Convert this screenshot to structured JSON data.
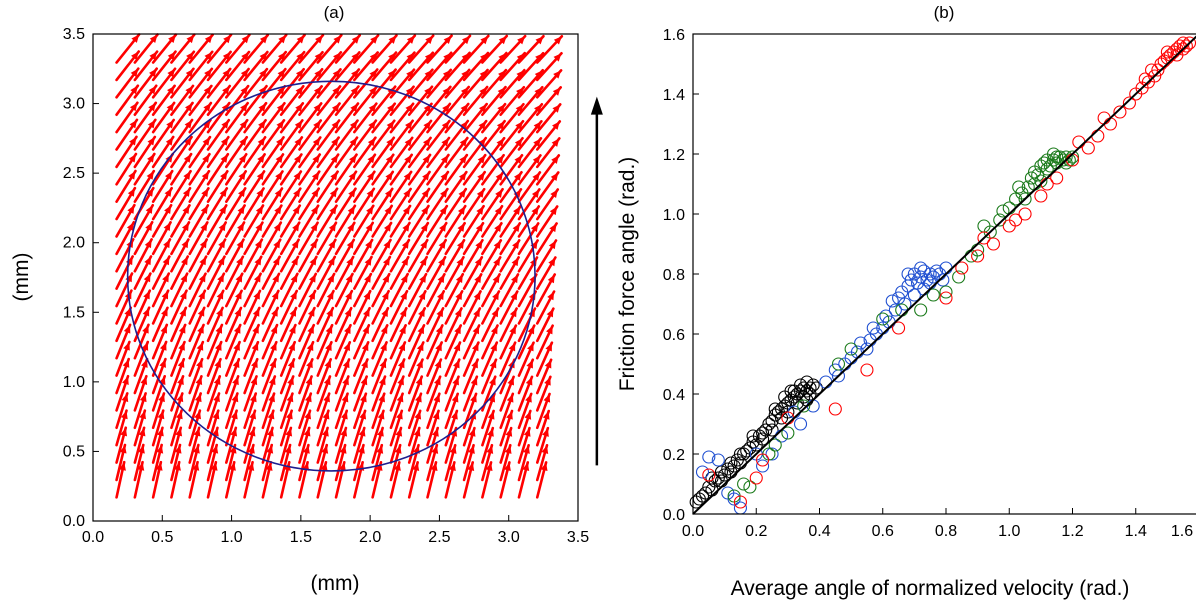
{
  "colors": {
    "field_arrows": "#ff0000",
    "circle": "#1f1f8f",
    "motion_arrow": "#000000",
    "frame": "#000000",
    "identity_line": "#000000"
  },
  "chart_data": [
    {
      "type": "vector-field",
      "panel_label": "(a)",
      "xlabel": "(mm)",
      "ylabel": "(mm)",
      "xlim": [
        0.0,
        3.5
      ],
      "ylim": [
        0.0,
        3.5
      ],
      "xticks": [
        "0.0",
        "0.5",
        "1.0",
        "1.5",
        "2.0",
        "2.5",
        "3.0",
        "3.5"
      ],
      "yticks": [
        "0.0",
        "0.5",
        "1.0",
        "1.5",
        "2.0",
        "2.5",
        "3.0",
        "3.5"
      ],
      "grid": false,
      "field": {
        "x_start": 0.17,
        "x_step": 0.132,
        "nx": 24,
        "y_start": 0.17,
        "y_step": 0.125,
        "ny": 26,
        "rotation_center": [
          1.75,
          1.75
        ],
        "description": "uniform grid of red arrows; direction = combined translation (+y) and rotation about the circle center"
      },
      "circle": {
        "center": [
          1.72,
          1.76
        ],
        "rx": 1.47,
        "ry": 1.4
      },
      "motion_arrow": {
        "x": 3.6,
        "y_from": 0.4,
        "y_to": 3.05,
        "direction": "up"
      }
    },
    {
      "type": "scatter",
      "panel_label": "(b)",
      "xlabel": "Average angle of normalized velocity (rad.)",
      "ylabel": "Friction force angle (rad.)",
      "xlim": [
        0.0,
        1.6
      ],
      "ylim": [
        0.0,
        1.6
      ],
      "xticks": [
        "0.0",
        "0.2",
        "0.4",
        "0.6",
        "0.8",
        "1.0",
        "1.2",
        "1.4",
        "1.6"
      ],
      "yticks": [
        "0.0",
        "0.2",
        "0.4",
        "0.6",
        "0.8",
        "1.0",
        "1.2",
        "1.4",
        "1.6"
      ],
      "grid": false,
      "marker": "open-circle",
      "identity_line": {
        "x": [
          0.0,
          1.6
        ],
        "y": [
          0.0,
          1.6
        ]
      },
      "series": [
        {
          "color": "#000000",
          "points": [
            [
              0.01,
              0.04
            ],
            [
              0.02,
              0.05
            ],
            [
              0.03,
              0.06
            ],
            [
              0.04,
              0.07
            ],
            [
              0.05,
              0.09
            ],
            [
              0.06,
              0.08
            ],
            [
              0.07,
              0.11
            ],
            [
              0.08,
              0.12
            ],
            [
              0.09,
              0.11
            ],
            [
              0.1,
              0.13
            ],
            [
              0.11,
              0.15
            ],
            [
              0.12,
              0.14
            ],
            [
              0.13,
              0.16
            ],
            [
              0.14,
              0.18
            ],
            [
              0.15,
              0.17
            ],
            [
              0.16,
              0.2
            ],
            [
              0.17,
              0.21
            ],
            [
              0.18,
              0.22
            ],
            [
              0.19,
              0.24
            ],
            [
              0.2,
              0.23
            ],
            [
              0.21,
              0.26
            ],
            [
              0.22,
              0.27
            ],
            [
              0.23,
              0.28
            ],
            [
              0.24,
              0.3
            ],
            [
              0.25,
              0.31
            ],
            [
              0.26,
              0.33
            ],
            [
              0.27,
              0.34
            ],
            [
              0.28,
              0.35
            ],
            [
              0.29,
              0.36
            ],
            [
              0.3,
              0.37
            ],
            [
              0.31,
              0.38
            ],
            [
              0.32,
              0.39
            ],
            [
              0.33,
              0.4
            ],
            [
              0.34,
              0.41
            ],
            [
              0.35,
              0.42
            ],
            [
              0.36,
              0.41
            ],
            [
              0.37,
              0.42
            ],
            [
              0.38,
              0.43
            ],
            [
              0.3,
              0.34
            ],
            [
              0.28,
              0.32
            ],
            [
              0.25,
              0.28
            ],
            [
              0.22,
              0.25
            ],
            [
              0.33,
              0.37
            ],
            [
              0.35,
              0.39
            ],
            [
              0.36,
              0.38
            ],
            [
              0.37,
              0.4
            ],
            [
              0.32,
              0.41
            ],
            [
              0.34,
              0.43
            ],
            [
              0.39,
              0.42
            ],
            [
              0.36,
              0.44
            ],
            [
              0.15,
              0.2
            ],
            [
              0.12,
              0.17
            ],
            [
              0.09,
              0.14
            ],
            [
              0.06,
              0.12
            ],
            [
              0.19,
              0.26
            ],
            [
              0.26,
              0.35
            ],
            [
              0.29,
              0.39
            ],
            [
              0.31,
              0.41
            ]
          ]
        },
        {
          "color": "#1f4fd1",
          "points": [
            [
              0.03,
              0.14
            ],
            [
              0.05,
              0.19
            ],
            [
              0.08,
              0.18
            ],
            [
              0.11,
              0.07
            ],
            [
              0.13,
              0.05
            ],
            [
              0.15,
              0.02
            ],
            [
              0.2,
              0.2
            ],
            [
              0.22,
              0.16
            ],
            [
              0.25,
              0.2
            ],
            [
              0.28,
              0.26
            ],
            [
              0.32,
              0.34
            ],
            [
              0.34,
              0.3
            ],
            [
              0.38,
              0.36
            ],
            [
              0.42,
              0.44
            ],
            [
              0.45,
              0.48
            ],
            [
              0.48,
              0.5
            ],
            [
              0.5,
              0.52
            ],
            [
              0.52,
              0.54
            ],
            [
              0.55,
              0.55
            ],
            [
              0.56,
              0.58
            ],
            [
              0.58,
              0.6
            ],
            [
              0.6,
              0.62
            ],
            [
              0.62,
              0.64
            ],
            [
              0.64,
              0.68
            ],
            [
              0.65,
              0.72
            ],
            [
              0.66,
              0.74
            ],
            [
              0.68,
              0.76
            ],
            [
              0.69,
              0.78
            ],
            [
              0.7,
              0.8
            ],
            [
              0.71,
              0.77
            ],
            [
              0.72,
              0.79
            ],
            [
              0.73,
              0.81
            ],
            [
              0.74,
              0.78
            ],
            [
              0.75,
              0.8
            ],
            [
              0.76,
              0.79
            ],
            [
              0.77,
              0.81
            ],
            [
              0.78,
              0.8
            ],
            [
              0.79,
              0.78
            ],
            [
              0.67,
              0.7
            ],
            [
              0.63,
              0.71
            ],
            [
              0.61,
              0.66
            ],
            [
              0.57,
              0.62
            ],
            [
              0.53,
              0.57
            ],
            [
              0.46,
              0.46
            ],
            [
              0.7,
              0.73
            ],
            [
              0.73,
              0.75
            ],
            [
              0.75,
              0.77
            ],
            [
              0.8,
              0.82
            ],
            [
              0.68,
              0.8
            ],
            [
              0.72,
              0.82
            ]
          ]
        },
        {
          "color": "#1a7a1a",
          "points": [
            [
              0.13,
              0.06
            ],
            [
              0.16,
              0.1
            ],
            [
              0.18,
              0.09
            ],
            [
              0.24,
              0.2
            ],
            [
              0.26,
              0.23
            ],
            [
              0.3,
              0.27
            ],
            [
              0.35,
              0.36
            ],
            [
              0.46,
              0.5
            ],
            [
              0.5,
              0.55
            ],
            [
              0.6,
              0.65
            ],
            [
              0.66,
              0.68
            ],
            [
              0.72,
              0.68
            ],
            [
              0.76,
              0.73
            ],
            [
              0.8,
              0.74
            ],
            [
              0.84,
              0.79
            ],
            [
              0.88,
              0.86
            ],
            [
              0.9,
              0.88
            ],
            [
              0.94,
              0.94
            ],
            [
              0.97,
              0.98
            ],
            [
              1.0,
              1.02
            ],
            [
              1.02,
              1.05
            ],
            [
              1.04,
              1.07
            ],
            [
              1.06,
              1.09
            ],
            [
              1.07,
              1.12
            ],
            [
              1.08,
              1.14
            ],
            [
              1.09,
              1.13
            ],
            [
              1.1,
              1.16
            ],
            [
              1.11,
              1.17
            ],
            [
              1.12,
              1.18
            ],
            [
              1.13,
              1.16
            ],
            [
              1.14,
              1.18
            ],
            [
              1.15,
              1.17
            ],
            [
              1.16,
              1.19
            ],
            [
              1.17,
              1.18
            ],
            [
              1.18,
              1.19
            ],
            [
              1.19,
              1.18
            ],
            [
              1.2,
              1.19
            ],
            [
              1.05,
              1.05
            ],
            [
              1.08,
              1.1
            ],
            [
              1.12,
              1.15
            ],
            [
              1.15,
              1.19
            ],
            [
              1.18,
              1.17
            ],
            [
              0.92,
              0.96
            ],
            [
              0.98,
              1.01
            ],
            [
              1.03,
              1.09
            ],
            [
              1.1,
              1.11
            ],
            [
              1.14,
              1.2
            ]
          ]
        },
        {
          "color": "#ff0000",
          "points": [
            [
              0.05,
              0.13
            ],
            [
              0.15,
              0.04
            ],
            [
              0.2,
              0.12
            ],
            [
              0.22,
              0.18
            ],
            [
              0.3,
              0.32
            ],
            [
              0.45,
              0.35
            ],
            [
              0.55,
              0.48
            ],
            [
              0.65,
              0.62
            ],
            [
              0.8,
              0.72
            ],
            [
              0.85,
              0.82
            ],
            [
              0.9,
              0.86
            ],
            [
              0.95,
              0.9
            ],
            [
              1.0,
              0.96
            ],
            [
              1.05,
              1.0
            ],
            [
              1.1,
              1.06
            ],
            [
              1.15,
              1.12
            ],
            [
              1.2,
              1.18
            ],
            [
              1.25,
              1.22
            ],
            [
              1.28,
              1.26
            ],
            [
              1.32,
              1.3
            ],
            [
              1.35,
              1.34
            ],
            [
              1.38,
              1.37
            ],
            [
              1.4,
              1.4
            ],
            [
              1.42,
              1.42
            ],
            [
              1.44,
              1.44
            ],
            [
              1.46,
              1.46
            ],
            [
              1.47,
              1.48
            ],
            [
              1.48,
              1.5
            ],
            [
              1.49,
              1.51
            ],
            [
              1.5,
              1.52
            ],
            [
              1.51,
              1.53
            ],
            [
              1.52,
              1.54
            ],
            [
              1.53,
              1.55
            ],
            [
              1.54,
              1.56
            ],
            [
              1.55,
              1.55
            ],
            [
              1.56,
              1.56
            ],
            [
              1.57,
              1.57
            ],
            [
              1.45,
              1.48
            ],
            [
              1.43,
              1.45
            ],
            [
              1.5,
              1.54
            ],
            [
              1.53,
              1.53
            ],
            [
              1.55,
              1.57
            ],
            [
              1.3,
              1.32
            ],
            [
              1.22,
              1.24
            ],
            [
              1.12,
              1.1
            ],
            [
              0.92,
              0.92
            ],
            [
              1.02,
              0.98
            ]
          ]
        }
      ]
    }
  ]
}
